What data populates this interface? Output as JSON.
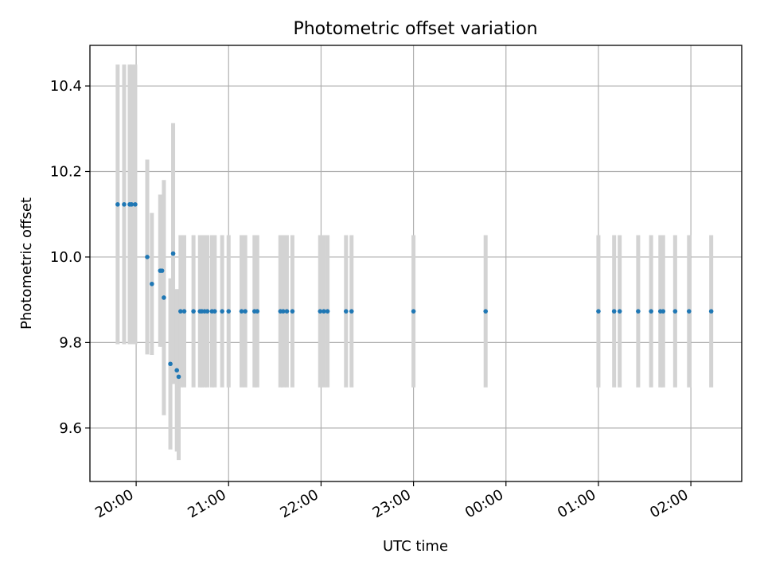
{
  "chart_data": {
    "type": "scatter",
    "title": "Photometric offset variation",
    "xlabel": "UTC time",
    "ylabel": "Photometric offset",
    "x_ticks": [
      "20:00",
      "21:00",
      "22:00",
      "23:00",
      "00:00",
      "01:00",
      "02:00"
    ],
    "x_tick_hours": [
      0,
      1,
      2,
      3,
      4,
      5,
      6
    ],
    "x_range_hours": [
      -0.5,
      6.55
    ],
    "y_ticks": [
      9.6,
      9.8,
      10.0,
      10.2,
      10.4
    ],
    "ylim": [
      9.475,
      10.495
    ],
    "grid": true,
    "marker_color": "#1f77b4",
    "errorbar_color": "#d3d3d3",
    "series": [
      {
        "x_hours": [
          -0.2,
          -0.13,
          -0.07,
          -0.05,
          -0.01,
          0.12,
          0.17,
          0.26,
          0.28,
          0.3,
          0.37,
          0.4,
          0.44,
          0.46,
          0.48,
          0.52,
          0.62,
          0.69,
          0.71,
          0.74,
          0.77,
          0.82,
          0.85,
          0.93,
          1.0,
          1.14,
          1.18,
          1.28,
          1.31,
          1.56,
          1.59,
          1.63,
          1.69,
          1.99,
          2.03,
          2.07,
          2.27,
          2.33,
          3.0,
          3.78,
          5.0,
          5.17,
          5.23,
          5.43,
          5.57,
          5.67,
          5.7,
          5.83,
          5.98,
          6.22
        ],
        "y": [
          10.123,
          10.123,
          10.123,
          10.123,
          10.123,
          10.0,
          9.937,
          9.968,
          9.968,
          9.905,
          9.75,
          10.008,
          9.735,
          9.72,
          9.873,
          9.873,
          9.873,
          9.873,
          9.873,
          9.873,
          9.873,
          9.873,
          9.873,
          9.873,
          9.873,
          9.873,
          9.873,
          9.873,
          9.873,
          9.873,
          9.873,
          9.873,
          9.873,
          9.873,
          9.873,
          9.873,
          9.873,
          9.873,
          9.873,
          9.873,
          9.873,
          9.873,
          9.873,
          9.873,
          9.873,
          9.873,
          9.873,
          9.873,
          9.873,
          9.873
        ],
        "yerr": [
          0.327,
          0.327,
          0.327,
          0.327,
          0.327,
          0.228,
          0.166,
          0.178,
          0.178,
          0.275,
          0.2,
          0.305,
          0.19,
          0.195,
          0.178,
          0.178,
          0.178,
          0.178,
          0.178,
          0.178,
          0.178,
          0.178,
          0.178,
          0.178,
          0.178,
          0.178,
          0.178,
          0.178,
          0.178,
          0.178,
          0.178,
          0.178,
          0.178,
          0.178,
          0.178,
          0.178,
          0.178,
          0.178,
          0.178,
          0.178,
          0.178,
          0.178,
          0.178,
          0.178,
          0.178,
          0.178,
          0.178,
          0.178,
          0.178,
          0.178
        ]
      }
    ]
  }
}
